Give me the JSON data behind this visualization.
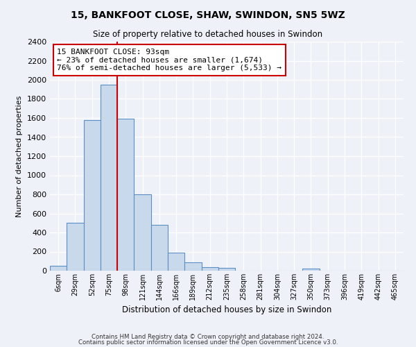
{
  "title1": "15, BANKFOOT CLOSE, SHAW, SWINDON, SN5 5WZ",
  "title2": "Size of property relative to detached houses in Swindon",
  "xlabel": "Distribution of detached houses by size in Swindon",
  "ylabel": "Number of detached properties",
  "bin_labels": [
    "6sqm",
    "29sqm",
    "52sqm",
    "75sqm",
    "98sqm",
    "121sqm",
    "144sqm",
    "166sqm",
    "189sqm",
    "212sqm",
    "235sqm",
    "258sqm",
    "281sqm",
    "304sqm",
    "327sqm",
    "350sqm",
    "373sqm",
    "396sqm",
    "419sqm",
    "442sqm",
    "465sqm"
  ],
  "bar_heights": [
    50,
    500,
    1580,
    1950,
    1590,
    800,
    480,
    190,
    90,
    35,
    30,
    0,
    0,
    0,
    0,
    20,
    0,
    0,
    0,
    0,
    0
  ],
  "bar_color": "#c9d9ec",
  "bar_edge_color": "#5b8ec4",
  "vline_color": "#cc0000",
  "annotation_title": "15 BANKFOOT CLOSE: 93sqm",
  "annotation_line1": "← 23% of detached houses are smaller (1,674)",
  "annotation_line2": "76% of semi-detached houses are larger (5,533) →",
  "annotation_box_color": "#ffffff",
  "annotation_box_edge": "#cc0000",
  "ylim": [
    0,
    2400
  ],
  "yticks": [
    0,
    200,
    400,
    600,
    800,
    1000,
    1200,
    1400,
    1600,
    1800,
    2000,
    2200,
    2400
  ],
  "footer1": "Contains HM Land Registry data © Crown copyright and database right 2024.",
  "footer2": "Contains public sector information licensed under the Open Government Licence v3.0.",
  "bg_color": "#eef2f8",
  "plot_bg_color": "#eef2f8",
  "grid_color": "#ffffff"
}
